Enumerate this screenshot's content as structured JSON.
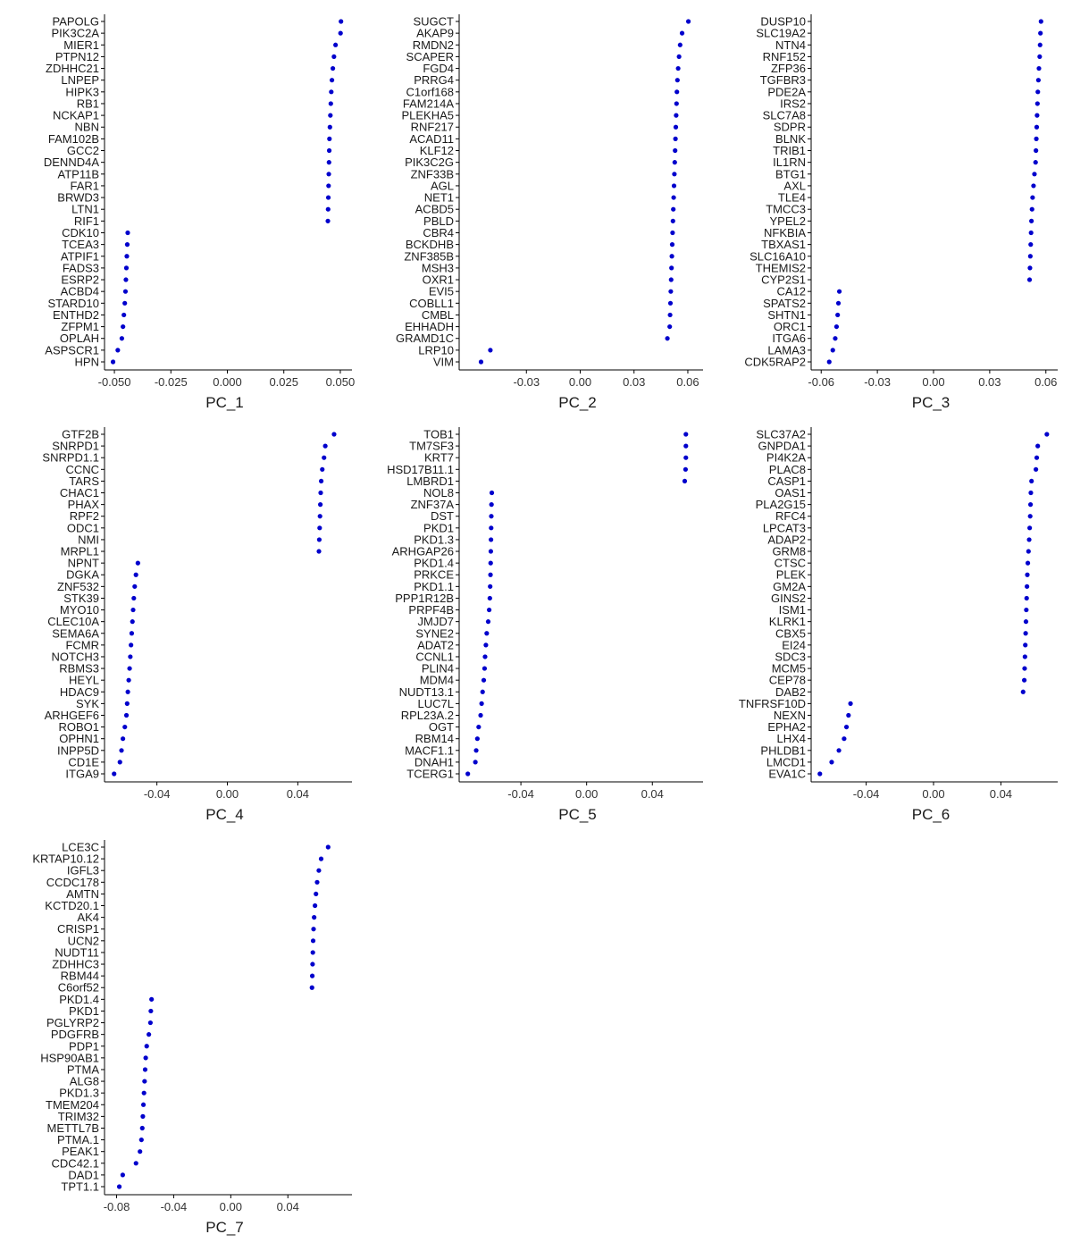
{
  "colors": {
    "points": "#0000cc",
    "axis": "#000000",
    "background": "#ffffff"
  },
  "chart_data": [
    {
      "type": "scatter",
      "title": "",
      "xlabel": "PC_1",
      "ylabel": "",
      "xlim": [
        -0.052,
        0.052
      ],
      "xticks": [
        -0.05,
        -0.025,
        0.0,
        0.025,
        0.05
      ],
      "xtick_labels": [
        "-0.050",
        "-0.025",
        "0.000",
        "0.025",
        "0.050"
      ],
      "genes": [
        "PAPOLG",
        "PIK3C2A",
        "MIER1",
        "PTPN12",
        "ZDHHC21",
        "LNPEP",
        "HIPK3",
        "RB1",
        "NCKAP1",
        "NBN",
        "FAM102B",
        "GCC2",
        "DENND4A",
        "ATP11B",
        "FAR1",
        "BRWD3",
        "LTN1",
        "RIF1",
        "CDK10",
        "TCEA3",
        "ATPIF1",
        "FADS3",
        "ESRP2",
        "ACBD4",
        "STARD10",
        "ENTHD2",
        "ZFPM1",
        "OPLAH",
        "ASPSCR1",
        "HPN"
      ],
      "values": [
        0.0503,
        0.0501,
        0.0479,
        0.0472,
        0.0467,
        0.0463,
        0.046,
        0.0458,
        0.0456,
        0.0454,
        0.0452,
        0.0451,
        0.045,
        0.0449,
        0.0448,
        0.0447,
        0.0446,
        0.0445,
        -0.0441,
        -0.0443,
        -0.0445,
        -0.0447,
        -0.0449,
        -0.0451,
        -0.0454,
        -0.0458,
        -0.0462,
        -0.0467,
        -0.0485,
        -0.0506
      ]
    },
    {
      "type": "scatter",
      "title": "",
      "xlabel": "PC_2",
      "ylabel": "",
      "xlim": [
        -0.0645,
        0.0645
      ],
      "xticks": [
        -0.03,
        0.0,
        0.03,
        0.06
      ],
      "xtick_labels": [
        "-0.03",
        "0.00",
        "0.03",
        "0.06"
      ],
      "genes": [
        "SUGCT",
        "AKAP9",
        "RMDN2",
        "SCAPER",
        "FGD4",
        "PRRG4",
        "C1orf168",
        "FAM214A",
        "PLEKHA5",
        "RNF217",
        "ACAD11",
        "KLF12",
        "PIK3C2G",
        "ZNF33B",
        "AGL",
        "NET1",
        "ACBD5",
        "PBLD",
        "CBR4",
        "BCKDHB",
        "ZNF385B",
        "MSH3",
        "OXR1",
        "EVI5",
        "COBLL1",
        "CMBL",
        "EHHADH",
        "GRAMD1C",
        "LRP10",
        "VIM"
      ],
      "values": [
        0.0603,
        0.0568,
        0.0557,
        0.0551,
        0.0546,
        0.0542,
        0.0539,
        0.0537,
        0.0535,
        0.0533,
        0.0531,
        0.0529,
        0.0527,
        0.0525,
        0.0523,
        0.0521,
        0.0519,
        0.0517,
        0.0515,
        0.0513,
        0.0511,
        0.0509,
        0.0507,
        0.0505,
        0.0503,
        0.0501,
        0.0499,
        0.0486,
        -0.0501,
        -0.0553
      ]
    },
    {
      "type": "scatter",
      "title": "",
      "xlabel": "PC_3",
      "ylabel": "",
      "xlim": [
        -0.0625,
        0.0625
      ],
      "xticks": [
        -0.06,
        -0.03,
        0.0,
        0.03,
        0.06
      ],
      "xtick_labels": [
        "-0.06",
        "-0.03",
        "0.00",
        "0.03",
        "0.06"
      ],
      "genes": [
        "DUSP10",
        "SLC19A2",
        "NTN4",
        "RNF152",
        "ZFP36",
        "TGFBR3",
        "PDE2A",
        "IRS2",
        "SLC7A8",
        "SDPR",
        "BLNK",
        "TRIB1",
        "IL1RN",
        "BTG1",
        "AXL",
        "TLE4",
        "TMCC3",
        "YPEL2",
        "NFKBIA",
        "TBXAS1",
        "SLC16A10",
        "THEMIS2",
        "CYP2S1",
        "CA12",
        "SPATS2",
        "SHTN1",
        "ORC1",
        "ITGA6",
        "LAMA3",
        "CDK5RAP2"
      ],
      "values": [
        0.0574,
        0.0571,
        0.0569,
        0.0567,
        0.0563,
        0.056,
        0.0557,
        0.0555,
        0.0553,
        0.0551,
        0.0549,
        0.0547,
        0.0545,
        0.0539,
        0.0534,
        0.0529,
        0.0526,
        0.0523,
        0.0521,
        0.0519,
        0.0517,
        0.0515,
        0.0513,
        -0.0503,
        -0.0508,
        -0.0512,
        -0.0518,
        -0.0525,
        -0.0538,
        -0.0557
      ]
    },
    {
      "type": "scatter",
      "title": "",
      "xlabel": "PC_4",
      "ylabel": "",
      "xlim": [
        -0.0667,
        0.0667
      ],
      "xticks": [
        -0.04,
        0.0,
        0.04
      ],
      "xtick_labels": [
        "-0.04",
        "0.00",
        "0.04"
      ],
      "genes": [
        "GTF2B",
        "SNRPD1",
        "SNRPD1.1",
        "CCNC",
        "TARS",
        "CHAC1",
        "PHAX",
        "RPF2",
        "ODC1",
        "NMI",
        "MRPL1",
        "NPNT",
        "DGKA",
        "ZNF532",
        "STK39",
        "MYO10",
        "CLEC10A",
        "SEMA6A",
        "FCMR",
        "NOTCH3",
        "RBMS3",
        "HEYL",
        "HDAC9",
        "SYK",
        "ARHGEF6",
        "ROBO1",
        "OPHN1",
        "INPP5D",
        "CD1E",
        "ITGA9"
      ],
      "values": [
        0.0606,
        0.0556,
        0.0549,
        0.0539,
        0.0533,
        0.053,
        0.0528,
        0.0526,
        0.0524,
        0.0522,
        0.052,
        -0.0508,
        -0.0519,
        -0.0526,
        -0.0531,
        -0.0535,
        -0.0539,
        -0.0543,
        -0.0547,
        -0.0551,
        -0.0555,
        -0.056,
        -0.0565,
        -0.0569,
        -0.0573,
        -0.0582,
        -0.0593,
        -0.0601,
        -0.061,
        -0.0643
      ]
    },
    {
      "type": "scatter",
      "title": "",
      "xlabel": "PC_5",
      "ylabel": "",
      "xlim": [
        -0.0743,
        0.0665
      ],
      "xticks": [
        -0.04,
        0.0,
        0.04
      ],
      "xtick_labels": [
        "-0.04",
        "0.00",
        "0.04"
      ],
      "genes": [
        "TOB1",
        "TM7SF3",
        "KRT7",
        "HSD17B11.1",
        "LMBRD1",
        "NOL8",
        "ZNF37A",
        "DST",
        "PKD1",
        "PKD1.3",
        "ARHGAP26",
        "PKD1.4",
        "PRKCE",
        "PKD1.1",
        "PPP1R12B",
        "PRPF4B",
        "JMJD7",
        "SYNE2",
        "ADAT2",
        "CCNL1",
        "PLIN4",
        "MDM4",
        "NUDT13.1",
        "LUC7L",
        "RPL23A.2",
        "OGT",
        "RBM14",
        "MACF1.1",
        "DNAH1",
        "TCERG1"
      ],
      "values": [
        0.0604,
        0.0604,
        0.0604,
        0.0602,
        0.0597,
        -0.0577,
        -0.0579,
        -0.058,
        -0.0581,
        -0.0582,
        -0.0583,
        -0.0584,
        -0.0585,
        -0.0587,
        -0.0589,
        -0.0593,
        -0.0599,
        -0.0608,
        -0.0613,
        -0.0618,
        -0.0621,
        -0.0626,
        -0.0633,
        -0.0639,
        -0.0645,
        -0.0657,
        -0.0665,
        -0.0672,
        -0.0677,
        -0.0723
      ]
    },
    {
      "type": "scatter",
      "title": "",
      "xlabel": "PC_6",
      "ylabel": "",
      "xlim": [
        -0.0695,
        0.0695
      ],
      "xticks": [
        -0.04,
        0.0,
        0.04
      ],
      "xtick_labels": [
        "-0.04",
        "0.00",
        "0.04"
      ],
      "genes": [
        "SLC37A2",
        "GNPDA1",
        "PI4K2A",
        "PLAC8",
        "CASP1",
        "OAS1",
        "PLA2G15",
        "RFC4",
        "LPCAT3",
        "ADAP2",
        "GRM8",
        "CTSC",
        "PLEK",
        "GM2A",
        "GINS2",
        "ISM1",
        "KLRK1",
        "CBX5",
        "EI24",
        "SDC3",
        "MCM5",
        "CEP78",
        "DAB2",
        "TNFRSF10D",
        "NEXN",
        "EPHA2",
        "LHX4",
        "PHLDB1",
        "LMCD1",
        "EVA1C"
      ],
      "values": [
        0.0673,
        0.0619,
        0.0613,
        0.0608,
        0.0582,
        0.0578,
        0.0576,
        0.0574,
        0.0571,
        0.0568,
        0.0564,
        0.056,
        0.0557,
        0.0555,
        0.0553,
        0.0551,
        0.0549,
        0.0547,
        0.0545,
        0.0543,
        0.0541,
        0.0539,
        0.0532,
        -0.0493,
        -0.0505,
        -0.0517,
        -0.0531,
        -0.0562,
        -0.0605,
        -0.0675
      ]
    },
    {
      "type": "scatter",
      "title": "",
      "xlabel": "PC_7",
      "ylabel": "",
      "xlim": [
        -0.0847,
        0.0799
      ],
      "xticks": [
        -0.08,
        -0.04,
        0.0,
        0.04
      ],
      "xtick_labels": [
        "-0.08",
        "-0.04",
        "0.00",
        "0.04"
      ],
      "genes": [
        "LCE3C",
        "KRTAP10.12",
        "IGFL3",
        "CCDC178",
        "AMTN",
        "KCTD20.1",
        "AK4",
        "CRISP1",
        "UCN2",
        "NUDT11",
        "ZDHHC3",
        "RBM44",
        "C6orf52",
        "PKD1.4",
        "PKD1",
        "PGLYRP2",
        "PDGFRB",
        "PDP1",
        "HSP90AB1",
        "PTMA",
        "ALG8",
        "PKD1.3",
        "TMEM204",
        "TRIM32",
        "METTL7B",
        "PTMA.1",
        "PEAK1",
        "CDC42.1",
        "DAD1",
        "TPT1.1"
      ],
      "values": [
        0.0682,
        0.0633,
        0.0617,
        0.0605,
        0.0597,
        0.059,
        0.0584,
        0.058,
        0.0577,
        0.0575,
        0.0573,
        0.0571,
        0.0569,
        -0.0555,
        -0.056,
        -0.0563,
        -0.0574,
        -0.0589,
        -0.0596,
        -0.06,
        -0.0604,
        -0.0608,
        -0.0612,
        -0.0616,
        -0.062,
        -0.0626,
        -0.0636,
        -0.0664,
        -0.0757,
        -0.0781
      ]
    }
  ]
}
